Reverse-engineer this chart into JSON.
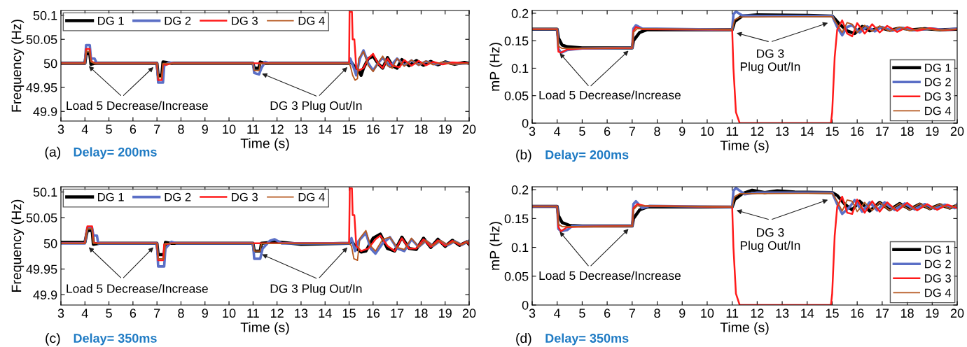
{
  "chart_data": [
    {
      "type": "line",
      "title": "(a)",
      "subtitle": "Delay= 200ms",
      "xlabel": "Time (s)",
      "ylabel": "Frequency (Hz)",
      "xlim": [
        3,
        20
      ],
      "ylim": [
        49.88,
        50.11
      ],
      "xticks": [
        3,
        4,
        5,
        6,
        7,
        8,
        9,
        10,
        11,
        12,
        13,
        14,
        15,
        16,
        17,
        18,
        19,
        20
      ],
      "yticks": [
        49.9,
        49.95,
        50,
        50.05,
        50.1
      ],
      "grid": false,
      "legend": "top left",
      "marker": "none",
      "line_style": "solid",
      "annotations": [
        {
          "text": "Load 5 Decrease/Increase",
          "x": 4.1,
          "y": 49.997
        },
        {
          "text": "DG 3 Plug Out/In",
          "x": 11.3,
          "y": 49.98
        }
      ],
      "series": [
        {
          "name": "DG 1",
          "color": "#000000",
          "x": [
            3,
            4,
            4.05,
            4.2,
            4.25,
            4.4,
            7,
            7.05,
            7.2,
            7.25,
            7.4,
            7.6,
            11,
            11.05,
            11.25,
            11.3,
            11.5,
            15,
            15.05,
            15.2,
            15.4,
            15.5,
            15.6,
            15.8,
            16,
            16.2,
            16.4,
            16.6,
            16.8,
            17,
            17.2,
            17.5,
            17.8,
            18.1,
            18.4,
            18.7,
            19,
            19.4,
            19.8,
            20
          ],
          "values": [
            50,
            50,
            50.02,
            50.02,
            49.998,
            50,
            50,
            49.975,
            49.975,
            50.003,
            50.002,
            50,
            50,
            49.99,
            49.99,
            50.003,
            50,
            50,
            50.005,
            49.995,
            49.985,
            49.975,
            49.99,
            50.01,
            50.015,
            50,
            49.99,
            50.012,
            49.995,
            49.99,
            50.008,
            49.995,
            50.006,
            49.996,
            50.004,
            49.997,
            50.003,
            49.998,
            50.002,
            50
          ]
        },
        {
          "name": "DG 2",
          "color": "#5b6fc6",
          "x": [
            3,
            4,
            4.05,
            4.2,
            4.25,
            4.4,
            4.5,
            7,
            7.05,
            7.25,
            7.3,
            7.5,
            7.7,
            11,
            11.05,
            11.25,
            11.35,
            11.5,
            11.7,
            15,
            15.05,
            15.2,
            15.3,
            15.45,
            15.6,
            15.8,
            16,
            16.2,
            16.4,
            16.7,
            17,
            17.3,
            17.6,
            17.9,
            18.2,
            18.6,
            19,
            19.5,
            20
          ],
          "values": [
            50,
            50,
            50.038,
            50.038,
            50.01,
            50.01,
            50,
            50,
            49.96,
            49.96,
            49.995,
            50.002,
            50,
            50,
            49.98,
            49.977,
            49.99,
            50.003,
            50,
            50,
            50.01,
            49.99,
            49.975,
            50.01,
            50.027,
            50,
            49.985,
            50,
            50.012,
            49.993,
            50.01,
            49.996,
            50.006,
            49.997,
            50.004,
            49.998,
            50.002,
            49.999,
            50
          ]
        },
        {
          "name": "DG 3",
          "color": "#ff1a1a",
          "x": [
            3,
            4,
            4.05,
            4.2,
            4.25,
            4.4,
            7,
            7.05,
            7.2,
            7.25,
            7.4,
            7.6,
            15,
            15.02,
            15.12,
            15.15,
            15.22,
            15.3,
            15.4,
            15.6,
            15.8,
            16,
            16.2,
            16.4,
            16.6,
            16.8,
            17.1,
            17.3,
            17.6,
            17.9,
            18.2,
            18.5,
            18.9,
            19.3,
            20
          ],
          "values": [
            50,
            50,
            50.03,
            50.03,
            50.005,
            50,
            50,
            49.965,
            49.965,
            49.998,
            49.997,
            50,
            50,
            50.107,
            50.107,
            50.05,
            50.05,
            49.99,
            49.985,
            49.99,
            50.01,
            50.02,
            50,
            49.99,
            50.01,
            49.995,
            49.992,
            50.007,
            49.995,
            50.005,
            49.996,
            50.003,
            49.998,
            50.002,
            50
          ]
        },
        {
          "name": "DG 4",
          "color": "#b5571f",
          "x": [
            3,
            4,
            4.05,
            4.2,
            4.25,
            4.4,
            7,
            7.05,
            7.2,
            7.25,
            11,
            11.05,
            11.25,
            11.3,
            15,
            15.05,
            15.15,
            15.25,
            15.35,
            15.4,
            15.6,
            15.8,
            16,
            16.2,
            16.4,
            16.6,
            16.8,
            17,
            17.3,
            17.6,
            17.9,
            18.2,
            18.5,
            18.9,
            19.3,
            20
          ],
          "values": [
            50,
            50,
            50.025,
            50.025,
            50.003,
            50,
            50,
            49.97,
            49.97,
            50,
            50,
            49.985,
            49.985,
            50,
            50,
            49.995,
            49.975,
            49.965,
            49.968,
            50.01,
            50.025,
            49.995,
            49.983,
            50,
            50.015,
            49.995,
            49.99,
            50.01,
            49.994,
            50.007,
            49.996,
            50.005,
            49.997,
            50.003,
            49.998,
            50
          ]
        }
      ]
    },
    {
      "type": "line",
      "title": "(b)",
      "subtitle": "Delay= 200ms",
      "xlabel": "Time (s)",
      "ylabel": "mP (Hz)",
      "xlim": [
        3,
        20
      ],
      "ylim": [
        0,
        0.205
      ],
      "xticks": [
        3,
        4,
        5,
        6,
        7,
        8,
        9,
        10,
        11,
        12,
        13,
        14,
        15,
        16,
        17,
        18,
        19,
        20
      ],
      "yticks": [
        0,
        0.05,
        0.1,
        0.15,
        0.2
      ],
      "grid": false,
      "legend": "bottom right",
      "marker": "none",
      "line_style": "solid",
      "annotations": [
        {
          "text": "Load 5 Decrease/Increase",
          "x": 4.05,
          "y": 0.13
        },
        {
          "text": "DG 3\nPlug Out/In",
          "x": 11.1,
          "y": 0.165
        }
      ],
      "series": [
        {
          "name": "DG 1",
          "color": "#000000",
          "x": [
            3,
            4,
            4.05,
            4.2,
            4.4,
            5,
            7,
            7.05,
            7.3,
            7.6,
            11,
            11.1,
            11.4,
            12,
            14,
            15,
            15.1,
            15.3,
            15.6,
            15.9,
            16.2,
            16.5,
            16.9,
            17.3,
            17.7,
            18.2,
            18.7,
            19.3,
            20
          ],
          "values": [
            0.171,
            0.171,
            0.155,
            0.142,
            0.139,
            0.137,
            0.137,
            0.15,
            0.165,
            0.17,
            0.17,
            0.185,
            0.195,
            0.197,
            0.196,
            0.195,
            0.19,
            0.18,
            0.168,
            0.163,
            0.176,
            0.168,
            0.174,
            0.169,
            0.173,
            0.17,
            0.172,
            0.17,
            0.171
          ]
        },
        {
          "name": "DG 2",
          "color": "#5b6fc6",
          "x": [
            3,
            4,
            4.05,
            4.15,
            4.4,
            5,
            7,
            7.05,
            7.15,
            7.4,
            11,
            11.05,
            11.15,
            11.4,
            12,
            15,
            15.2,
            15.4,
            15.6,
            15.8,
            16.1,
            16.4,
            16.7,
            17,
            17.4,
            17.8,
            18.3,
            18.9,
            19.5,
            20
          ],
          "values": [
            0.171,
            0.171,
            0.135,
            0.128,
            0.133,
            0.136,
            0.137,
            0.172,
            0.178,
            0.172,
            0.17,
            0.198,
            0.203,
            0.196,
            0.195,
            0.195,
            0.175,
            0.16,
            0.175,
            0.178,
            0.165,
            0.176,
            0.167,
            0.175,
            0.168,
            0.173,
            0.169,
            0.172,
            0.17,
            0.172
          ]
        },
        {
          "name": "DG 3",
          "color": "#ff1a1a",
          "x": [
            3,
            4,
            4.05,
            4.15,
            4.4,
            5,
            7,
            7.05,
            7.15,
            7.4,
            11,
            11.05,
            11.15,
            11.3,
            14.95,
            15,
            15.1,
            15.2,
            15.4,
            15.6,
            15.8,
            16,
            16.3,
            16.6,
            16.9,
            17.2,
            17.6,
            18,
            18.4,
            18.9,
            19.4,
            20
          ],
          "values": [
            0.171,
            0.171,
            0.13,
            0.128,
            0.134,
            0.136,
            0.137,
            0.168,
            0.175,
            0.171,
            0.17,
            0.1,
            0.02,
            0,
            0,
            0.02,
            0.12,
            0.17,
            0.187,
            0.163,
            0.158,
            0.182,
            0.163,
            0.18,
            0.165,
            0.177,
            0.166,
            0.175,
            0.168,
            0.173,
            0.169,
            0.171
          ]
        },
        {
          "name": "DG 4",
          "color": "#b5571f",
          "x": [
            3,
            4,
            4.05,
            4.2,
            5,
            7,
            7.05,
            7.2,
            11,
            11.1,
            11.3,
            15,
            15.2,
            15.4,
            15.6,
            15.8,
            16,
            16.3,
            16.6,
            16.9,
            17.3,
            17.7,
            18.1,
            18.6,
            19.2,
            20
          ],
          "values": [
            0.171,
            0.171,
            0.14,
            0.136,
            0.136,
            0.137,
            0.165,
            0.172,
            0.17,
            0.188,
            0.193,
            0.194,
            0.18,
            0.165,
            0.183,
            0.18,
            0.165,
            0.178,
            0.167,
            0.177,
            0.167,
            0.175,
            0.168,
            0.173,
            0.169,
            0.171
          ]
        }
      ]
    },
    {
      "type": "line",
      "title": "(c)",
      "subtitle": "Delay= 350ms",
      "xlabel": "Time (s)",
      "ylabel": "Frequency (Hz)",
      "xlim": [
        3,
        20
      ],
      "ylim": [
        49.88,
        50.11
      ],
      "xticks": [
        3,
        4,
        5,
        6,
        7,
        8,
        9,
        10,
        11,
        12,
        13,
        14,
        15,
        16,
        17,
        18,
        19,
        20
      ],
      "yticks": [
        49.9,
        49.95,
        50,
        50.05,
        50.1
      ],
      "grid": false,
      "legend": "top left",
      "marker": "none",
      "line_style": "solid",
      "annotations": [
        {
          "text": "Load 5 Decrease/Increase",
          "x": 4.1,
          "y": 49.995
        },
        {
          "text": "DG 3 Plug Out/In",
          "x": 11.3,
          "y": 49.98
        }
      ],
      "series": [
        {
          "name": "DG 1",
          "color": "#000000",
          "x": [
            3,
            4,
            4.1,
            4.3,
            4.35,
            4.6,
            7,
            7.05,
            7.3,
            7.35,
            7.6,
            11,
            11.05,
            11.3,
            11.35,
            12,
            13,
            15,
            15.1,
            15.3,
            15.5,
            15.7,
            16,
            16.3,
            16.6,
            16.9,
            17.2,
            17.5,
            17.8,
            18.1,
            18.4,
            18.7,
            19,
            19.3,
            19.6,
            19.9,
            20
          ],
          "values": [
            50.002,
            50.002,
            50.025,
            50.025,
            49.998,
            50,
            50,
            49.978,
            49.978,
            50.002,
            50,
            50,
            49.985,
            49.985,
            50,
            50.003,
            49.998,
            50,
            50.005,
            49.99,
            49.983,
            49.985,
            50.01,
            50.018,
            49.99,
            49.985,
            50.012,
            49.99,
            49.988,
            50.01,
            49.992,
            50.008,
            49.994,
            50.006,
            49.996,
            50.003,
            49.998
          ]
        },
        {
          "name": "DG 2",
          "color": "#5b6fc6",
          "x": [
            3,
            4,
            4.1,
            4.3,
            4.35,
            4.5,
            4.55,
            7,
            7.05,
            7.3,
            7.35,
            7.6,
            7.8,
            11,
            11.05,
            11.3,
            11.4,
            11.7,
            11.9,
            12.2,
            15,
            15.1,
            15.25,
            15.4,
            15.7,
            15.9,
            16.1,
            16.4,
            16.7,
            17,
            17.3,
            17.6,
            17.9,
            18.2,
            18.5,
            18.8,
            19.1,
            19.4,
            19.7,
            20
          ],
          "values": [
            50,
            50,
            50.03,
            50.03,
            50.015,
            50.015,
            50,
            50,
            49.955,
            49.955,
            49.99,
            50.003,
            50,
            50,
            49.97,
            49.97,
            49.99,
            50.005,
            50.008,
            50,
            50,
            50.01,
            49.985,
            50.005,
            50.02,
            49.99,
            49.98,
            50,
            50.012,
            49.99,
            49.985,
            50.008,
            49.993,
            50.005,
            49.995,
            50.005,
            49.996,
            50.004,
            49.997,
            50.005
          ]
        },
        {
          "name": "DG 3",
          "color": "#ff1a1a",
          "x": [
            3,
            4,
            4.1,
            4.3,
            4.35,
            4.5,
            7,
            7.05,
            7.25,
            7.3,
            7.6,
            15,
            15.03,
            15.12,
            15.15,
            15.22,
            15.3,
            15.5,
            15.8,
            16.1,
            16.3,
            16.6,
            16.9,
            17.2,
            17.5,
            17.8,
            18.1,
            18.4,
            18.7,
            19,
            19.3,
            19.6,
            19.9,
            20
          ],
          "values": [
            50,
            50,
            50.033,
            50.033,
            50.002,
            50,
            50,
            49.967,
            49.967,
            49.998,
            50,
            50,
            50.107,
            50.107,
            50.055,
            50.055,
            49.995,
            49.985,
            49.99,
            50.008,
            50.015,
            49.995,
            49.985,
            50.01,
            49.99,
            49.99,
            50.008,
            49.993,
            50.006,
            49.995,
            50.005,
            49.997,
            50.003,
            49.998
          ]
        },
        {
          "name": "DG 4",
          "color": "#b5571f",
          "x": [
            3,
            4,
            4.1,
            4.3,
            4.35,
            7,
            7.05,
            7.3,
            7.35,
            11,
            11.05,
            11.3,
            11.35,
            15,
            15.1,
            15.2,
            15.35,
            15.45,
            15.7,
            15.9,
            16.1,
            16.4,
            16.7,
            17,
            17.3,
            17.6,
            17.9,
            18.2,
            18.5,
            18.8,
            19.1,
            19.4,
            19.7,
            20
          ],
          "values": [
            50,
            50,
            50.028,
            50.028,
            50,
            50,
            49.97,
            49.97,
            50,
            50,
            49.985,
            49.985,
            50,
            50,
            49.995,
            49.97,
            49.967,
            50.01,
            50.025,
            49.995,
            49.985,
            50.008,
            50.012,
            49.992,
            49.988,
            50.01,
            49.993,
            50.006,
            49.995,
            50.006,
            49.997,
            50.004,
            49.997,
            50.005
          ]
        }
      ]
    },
    {
      "type": "line",
      "title": "(d)",
      "subtitle": "Delay= 350ms",
      "xlabel": "Time (s)",
      "ylabel": "mP (Hz)",
      "xlim": [
        3,
        20
      ],
      "ylim": [
        0,
        0.205
      ],
      "xticks": [
        3,
        4,
        5,
        6,
        7,
        8,
        9,
        10,
        11,
        12,
        13,
        14,
        15,
        16,
        17,
        18,
        19,
        20
      ],
      "yticks": [
        0,
        0.05,
        0.1,
        0.15,
        0.2
      ],
      "grid": false,
      "legend": "bottom right",
      "marker": "none",
      "line_style": "solid",
      "annotations": [
        {
          "text": "Load 5 Decrease/Increase",
          "x": 4.05,
          "y": 0.13
        },
        {
          "text": "DG 3\nPlug Out/In",
          "x": 11.1,
          "y": 0.165
        }
      ],
      "series": [
        {
          "name": "DG 1",
          "color": "#000000",
          "x": [
            3,
            4,
            4.05,
            4.2,
            4.5,
            5,
            7,
            7.05,
            7.3,
            7.6,
            11,
            11.1,
            11.4,
            11.8,
            12.3,
            12.8,
            13.5,
            15,
            15.2,
            15.5,
            15.8,
            16.1,
            16.5,
            16.9,
            17.3,
            17.7,
            18.1,
            18.5,
            18.9,
            19.3,
            19.7,
            20
          ],
          "values": [
            0.171,
            0.171,
            0.155,
            0.143,
            0.138,
            0.137,
            0.137,
            0.15,
            0.165,
            0.17,
            0.17,
            0.183,
            0.193,
            0.199,
            0.195,
            0.198,
            0.196,
            0.195,
            0.19,
            0.175,
            0.165,
            0.18,
            0.163,
            0.178,
            0.165,
            0.176,
            0.166,
            0.175,
            0.167,
            0.174,
            0.168,
            0.173
          ]
        },
        {
          "name": "DG 2",
          "color": "#5b6fc6",
          "x": [
            3,
            4,
            4.05,
            4.15,
            4.4,
            4.6,
            5,
            7,
            7.05,
            7.15,
            7.4,
            7.7,
            11,
            11.05,
            11.15,
            11.5,
            12,
            15,
            15.2,
            15.4,
            15.7,
            15.9,
            16.2,
            16.5,
            16.8,
            17.1,
            17.5,
            17.9,
            18.3,
            18.7,
            19.1,
            19.5,
            19.9,
            20
          ],
          "values": [
            0.171,
            0.171,
            0.132,
            0.128,
            0.13,
            0.137,
            0.137,
            0.137,
            0.175,
            0.18,
            0.168,
            0.172,
            0.17,
            0.198,
            0.203,
            0.192,
            0.195,
            0.195,
            0.175,
            0.158,
            0.17,
            0.182,
            0.162,
            0.178,
            0.164,
            0.178,
            0.165,
            0.176,
            0.166,
            0.175,
            0.167,
            0.174,
            0.168,
            0.175
          ]
        },
        {
          "name": "DG 3",
          "color": "#ff1a1a",
          "x": [
            3,
            4,
            4.05,
            4.15,
            4.4,
            5,
            7,
            7.05,
            7.2,
            7.5,
            11,
            11.05,
            11.15,
            11.3,
            14.95,
            15,
            15.1,
            15.2,
            15.4,
            15.6,
            15.8,
            16,
            16.3,
            16.6,
            16.9,
            17.2,
            17.6,
            18,
            18.4,
            18.8,
            19.2,
            19.6,
            20
          ],
          "values": [
            0.171,
            0.171,
            0.135,
            0.128,
            0.135,
            0.136,
            0.137,
            0.168,
            0.175,
            0.172,
            0.17,
            0.1,
            0.02,
            0,
            0,
            0.02,
            0.12,
            0.17,
            0.188,
            0.16,
            0.158,
            0.183,
            0.16,
            0.18,
            0.162,
            0.178,
            0.163,
            0.177,
            0.164,
            0.175,
            0.165,
            0.174,
            0.168
          ]
        },
        {
          "name": "DG 4",
          "color": "#b5571f",
          "x": [
            3,
            4,
            4.05,
            4.2,
            5,
            7,
            7.05,
            7.2,
            11,
            11.1,
            11.3,
            15,
            15.2,
            15.4,
            15.6,
            15.8,
            16,
            16.3,
            16.6,
            16.9,
            17.3,
            17.7,
            18.1,
            18.5,
            18.9,
            19.3,
            19.7,
            20
          ],
          "values": [
            0.171,
            0.171,
            0.14,
            0.136,
            0.136,
            0.137,
            0.165,
            0.172,
            0.17,
            0.188,
            0.193,
            0.194,
            0.18,
            0.163,
            0.182,
            0.18,
            0.162,
            0.178,
            0.164,
            0.178,
            0.164,
            0.176,
            0.165,
            0.176,
            0.166,
            0.175,
            0.167,
            0.174
          ]
        }
      ]
    }
  ]
}
